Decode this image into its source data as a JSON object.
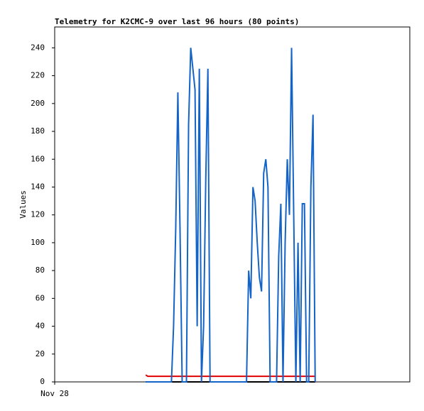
{
  "chart_data": {
    "type": "line",
    "title": "Telemetry for K2CMC-9 over last 96 hours (80 points)",
    "ylabel": "Values",
    "xlim": [
      0,
      96
    ],
    "xticks": [
      {
        "value": 0,
        "label": "Nov 28"
      }
    ],
    "ylim": [
      0,
      255
    ],
    "yticks": [
      0,
      20,
      40,
      60,
      80,
      100,
      120,
      140,
      160,
      180,
      200,
      220,
      240
    ],
    "x": [
      24.6,
      25.18,
      25.76,
      26.34,
      26.92,
      27.5,
      28.08,
      28.66,
      29.24,
      29.82,
      30.4,
      30.98,
      31.56,
      32.14,
      32.72,
      33.3,
      33.88,
      34.46,
      35.04,
      35.62,
      36.2,
      36.78,
      37.36,
      37.94,
      38.52,
      39.1,
      39.68,
      40.26,
      40.84,
      41.42,
      42,
      42.58,
      43.16,
      43.74,
      44.32,
      44.9,
      45.48,
      46.06,
      46.64,
      47.22,
      47.8,
      48.38,
      48.96,
      49.54,
      50.12,
      50.7,
      51.28,
      51.86,
      52.44,
      53.02,
      53.6,
      54.18,
      54.76,
      55.34,
      55.92,
      56.5,
      57.08,
      57.66,
      58.24,
      58.82,
      59.4,
      59.98,
      60.56,
      61.14,
      61.72,
      62.3,
      62.88,
      63.46,
      64.04,
      64.62,
      65.2,
      65.78,
      66.36,
      66.94,
      67.52,
      68.1,
      68.68,
      69.26,
      69.84,
      70.42
    ],
    "series": [
      {
        "color": "#000000",
        "values": [
          0,
          0,
          0,
          0,
          0,
          0,
          0,
          0,
          0,
          0,
          0,
          0,
          0,
          0,
          0,
          0,
          0,
          0,
          0,
          0,
          0,
          0,
          0,
          0,
          0,
          0,
          0,
          0,
          0,
          0,
          0,
          0,
          0,
          0,
          0,
          0,
          0,
          0,
          0,
          0,
          0,
          0,
          0,
          0,
          0,
          0,
          0,
          0,
          0,
          0,
          0,
          0,
          0,
          0,
          0,
          0,
          0,
          0,
          0,
          0,
          0,
          0,
          0,
          0,
          0,
          0,
          0,
          0,
          0,
          0,
          0,
          0,
          0,
          0,
          0,
          0,
          0,
          0,
          0,
          0
        ]
      },
      {
        "color": "#e00000",
        "values": [
          5,
          4,
          4,
          4,
          4,
          4,
          4,
          4,
          4,
          4,
          4,
          4,
          4,
          4,
          4,
          4,
          4,
          4,
          4,
          4,
          4,
          4,
          4,
          4,
          4,
          4,
          4,
          4,
          4,
          4,
          4,
          4,
          4,
          4,
          4,
          4,
          4,
          4,
          4,
          4,
          4,
          4,
          4,
          4,
          4,
          4,
          4,
          4,
          4,
          4,
          4,
          4,
          4,
          4,
          4,
          4,
          4,
          4,
          4,
          4,
          4,
          4,
          4,
          4,
          4,
          4,
          4,
          4,
          4,
          4,
          4,
          4,
          4,
          4,
          4,
          4,
          4,
          4,
          4,
          4
        ]
      },
      {
        "color": "#1464c8",
        "values": [
          0,
          0,
          0,
          0,
          0,
          0,
          0,
          0,
          0,
          0,
          0,
          0,
          0,
          40,
          110,
          208,
          110,
          0,
          0,
          0,
          185,
          240,
          225,
          210,
          40,
          225,
          0,
          40,
          145,
          225,
          0,
          0,
          0,
          0,
          0,
          0,
          0,
          0,
          0,
          0,
          0,
          0,
          0,
          0,
          0,
          0,
          0,
          0,
          80,
          60,
          140,
          130,
          100,
          75,
          65,
          150,
          160,
          140,
          0,
          0,
          0,
          0,
          90,
          128,
          0,
          100,
          160,
          120,
          240,
          120,
          0,
          100,
          0,
          128,
          128,
          0,
          0,
          140,
          192,
          0
        ]
      }
    ]
  }
}
